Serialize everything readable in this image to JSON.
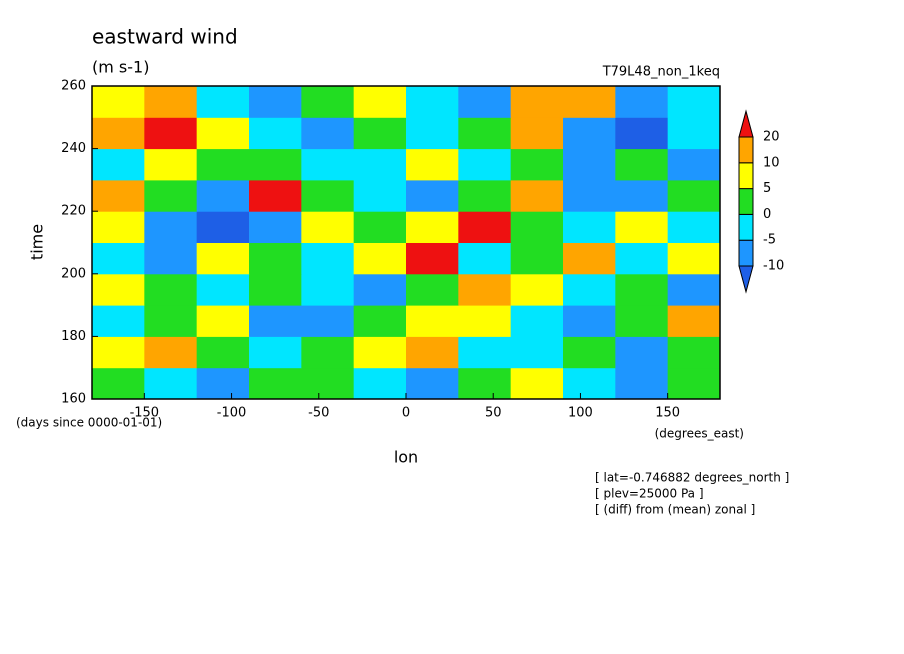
{
  "chart_data": {
    "type": "contour",
    "title": "eastward wind",
    "units": "(m s-1)",
    "dataset": "T79L48_non_1keq",
    "x_label": "lon",
    "y_label": "time",
    "x_units": "(degrees_east)",
    "y_units": "(days since 0000-01-01)",
    "annotations": [
      "[ lat=-0.746882 degrees_north ]",
      "[ plev=25000 Pa ]",
      "[ (diff) from (mean) zonal ]"
    ],
    "xlim": [
      -180,
      180
    ],
    "xticks": [
      -150,
      -100,
      -50,
      0,
      50,
      100,
      150
    ],
    "ylim": [
      160,
      260
    ],
    "yticks": [
      160,
      180,
      200,
      220,
      240,
      260
    ],
    "levels": [
      -10,
      -5,
      0,
      5,
      10,
      20
    ],
    "colors": [
      "#1e5fe6",
      "#1e96ff",
      "#00e6ff",
      "#22dd22",
      "#ffff00",
      "#ffa500",
      "#ee1111"
    ],
    "x": [
      -165,
      -135,
      -105,
      -75,
      -45,
      -15,
      15,
      45,
      75,
      105,
      135,
      165
    ],
    "y": [
      165,
      175,
      185,
      195,
      205,
      215,
      225,
      235,
      245,
      255
    ],
    "z": [
      [
        3,
        -2,
        -6,
        1,
        4,
        -3,
        -7,
        2,
        6,
        -1,
        -8,
        3
      ],
      [
        6,
        12,
        4,
        -3,
        1,
        8,
        14,
        -2,
        -5,
        3,
        -6,
        2
      ],
      [
        -4,
        3,
        8,
        -6,
        -8,
        2,
        6,
        9,
        -1,
        -7,
        4,
        10
      ],
      [
        9,
        4,
        -5,
        2,
        -3,
        -6,
        3,
        12,
        8,
        -4,
        2,
        -6
      ],
      [
        -3,
        -8,
        6,
        3,
        -2,
        5,
        22,
        -1,
        3,
        12,
        -5,
        6
      ],
      [
        5,
        -9,
        -11,
        -6,
        8,
        2,
        7,
        22,
        1,
        -4,
        8,
        -3
      ],
      [
        12,
        2,
        -7,
        22,
        4,
        -3,
        -6,
        1,
        12,
        -8,
        -10,
        4
      ],
      [
        -2,
        6,
        3,
        1,
        -5,
        -4,
        9,
        -2,
        4,
        -6,
        3,
        -9
      ],
      [
        14,
        22,
        7,
        -3,
        -6,
        2,
        -4,
        1,
        10,
        -7,
        -11,
        -2
      ],
      [
        8,
        12,
        -4,
        -8,
        2,
        6,
        -3,
        -7,
        12,
        14,
        -6,
        -4
      ]
    ]
  }
}
